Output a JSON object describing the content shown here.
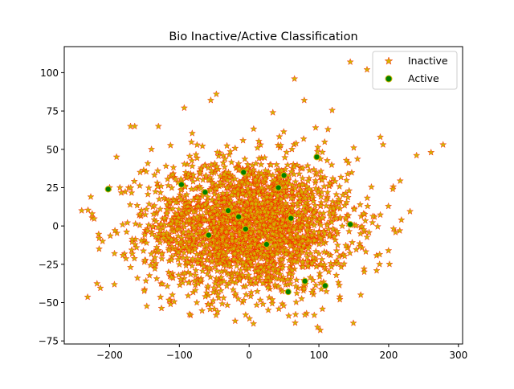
{
  "chart_data": {
    "type": "scatter",
    "title": "Bio Inactive/Active Classification",
    "xlabel": "",
    "ylabel": "",
    "xlim": [
      -265,
      306
    ],
    "ylim": [
      -77,
      117
    ],
    "xticks": [
      -200,
      -100,
      0,
      100,
      200,
      300
    ],
    "yticks": [
      -75,
      -50,
      -25,
      0,
      25,
      50,
      75,
      100
    ],
    "xtick_labels": [
      "−200",
      "−100",
      "0",
      "100",
      "200",
      "300"
    ],
    "ytick_labels": [
      "−75",
      "−50",
      "−25",
      "0",
      "25",
      "50",
      "75",
      "100"
    ],
    "grid": false,
    "legend_position": "top-right",
    "series": [
      {
        "name": "Inactive",
        "marker": "star",
        "face_color": "#d4b300",
        "edge_color": "#ff0000",
        "cloud": {
          "count": 2500,
          "center": [
            0,
            0
          ],
          "std": [
            72,
            22
          ],
          "outliers": [
            [
              145,
              107
            ],
            [
              169,
              102
            ],
            [
              65,
              96
            ],
            [
              278,
              53
            ],
            [
              240,
              46
            ],
            [
              -240,
              10
            ],
            [
              -20,
              -62
            ],
            [
              102,
              -68
            ],
            [
              79,
              82
            ],
            [
              -55,
              82
            ],
            [
              -47,
              86
            ],
            [
              -93,
              77
            ],
            [
              -160,
              -34
            ],
            [
              206,
              24
            ],
            [
              188,
              58
            ],
            [
              192,
              53
            ],
            [
              187,
              -25
            ],
            [
              -193,
              -18
            ],
            [
              -210,
              -10
            ],
            [
              -215,
              -8
            ],
            [
              -227,
              19
            ],
            [
              -225,
              8
            ],
            [
              -190,
              45
            ],
            [
              -170,
              65
            ],
            [
              -164,
              65
            ],
            [
              34,
              74
            ],
            [
              113,
              63
            ],
            [
              150,
              51
            ],
            [
              -130,
              65
            ],
            [
              -140,
              50
            ],
            [
              -170,
              -27
            ],
            [
              -110,
              -45
            ],
            [
              -75,
              -50
            ],
            [
              -5,
              -58
            ],
            [
              80,
              -58
            ],
            [
              130,
              -48
            ],
            [
              160,
              -45
            ],
            [
              165,
              -30
            ],
            [
              -215,
              -15
            ],
            [
              -200,
              25
            ]
          ]
        }
      },
      {
        "name": "Active",
        "marker": "circle",
        "face_color": "#008000",
        "edge_color": "#d4b300",
        "points": [
          [
            -202,
            24
          ],
          [
            -97,
            27
          ],
          [
            -63,
            22
          ],
          [
            -8,
            35
          ],
          [
            -5,
            -2
          ],
          [
            42,
            25
          ],
          [
            -58,
            -6
          ],
          [
            97,
            45
          ],
          [
            145,
            1
          ],
          [
            56,
            -43
          ],
          [
            80,
            -36
          ],
          [
            109,
            -39
          ],
          [
            50,
            33
          ],
          [
            -15,
            6
          ],
          [
            25,
            -12
          ],
          [
            -30,
            10
          ],
          [
            60,
            5
          ]
        ]
      }
    ]
  }
}
